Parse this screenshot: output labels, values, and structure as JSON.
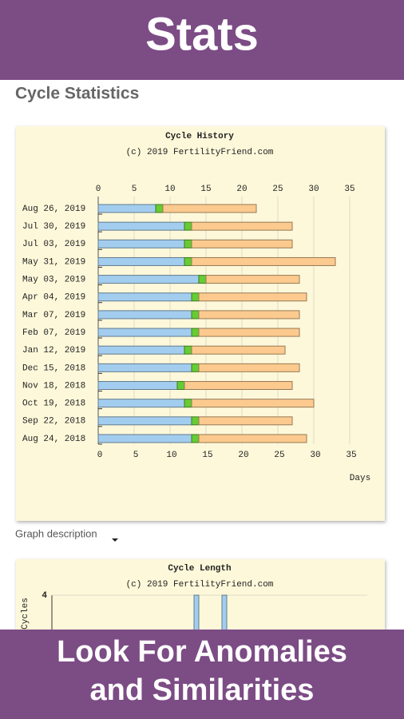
{
  "banner_top": "Stats",
  "section_title": "Cycle Statistics",
  "graph_description": "Graph description",
  "banner_bottom": [
    "Look For Anomalies",
    "and Similarities"
  ],
  "chart_data": [
    {
      "type": "bar",
      "orientation": "horizontal",
      "stacked": true,
      "title": "Cycle History",
      "subtitle": "(c) 2019 FertilityFriend.com",
      "x_label": "Days",
      "categories": [
        "Aug 26, 2019",
        "Jul 30, 2019",
        "Jul 03, 2019",
        "May 31, 2019",
        "May 03, 2019",
        "Apr 04, 2019",
        "Mar 07, 2019",
        "Feb 07, 2019",
        "Jan 12, 2019",
        "Dec 15, 2018",
        "Nov 18, 2018",
        "Oct 19, 2018",
        "Sep 22, 2018",
        "Aug 24, 2018"
      ],
      "series": [
        {
          "color": "#a3cdee",
          "values": [
            8,
            12,
            12,
            12,
            14,
            13,
            13,
            13,
            12,
            13,
            11,
            12,
            13,
            13
          ]
        },
        {
          "color": "#66cc33",
          "values": [
            1,
            1,
            1,
            1,
            1,
            1,
            1,
            1,
            1,
            1,
            1,
            1,
            1,
            1
          ]
        },
        {
          "color": "#fcca8e",
          "values": [
            13,
            14,
            14,
            20,
            13,
            15,
            14,
            14,
            13,
            14,
            15,
            17,
            13,
            15
          ]
        }
      ],
      "xlim": [
        0,
        35
      ],
      "xticks": [
        0,
        5,
        10,
        15,
        20,
        25,
        30,
        35
      ],
      "grid": true
    },
    {
      "type": "bar",
      "title": "Cycle Length",
      "subtitle": "(c) 2019 FertilityFriend.com",
      "y_label": "Cycles",
      "categories": [
        null,
        null
      ],
      "values": [
        4,
        4
      ],
      "color": "#a3cdee",
      "ylim": [
        0,
        4
      ],
      "yticks": [
        4
      ],
      "grid": true
    }
  ]
}
